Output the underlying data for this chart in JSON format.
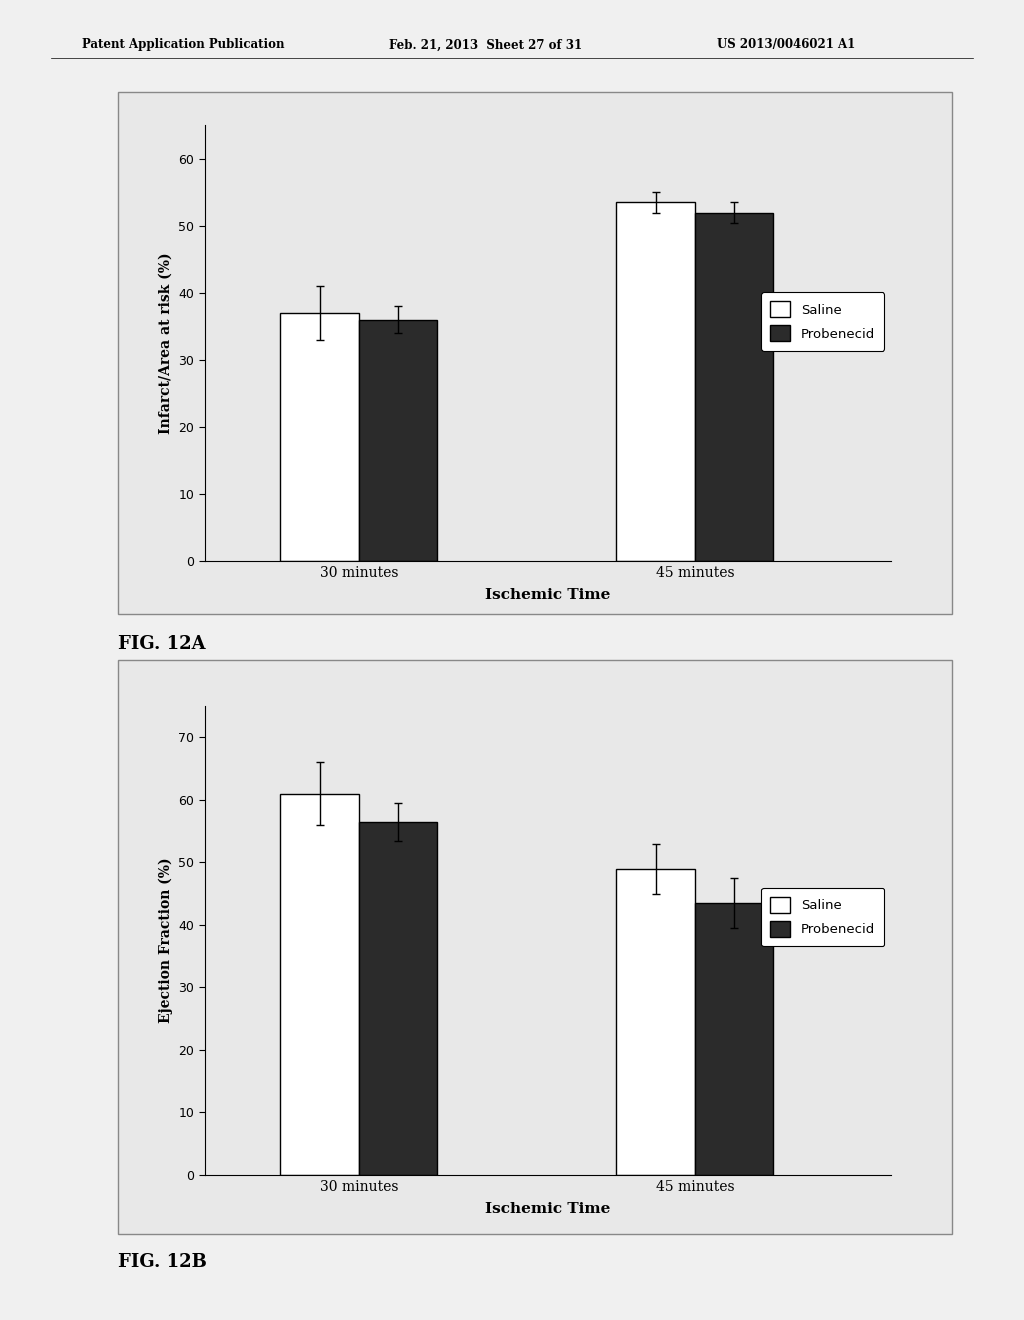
{
  "fig12a": {
    "ylabel": "Infarct/Area at risk (%)",
    "xlabel": "Ischemic Time",
    "categories": [
      "30 minutes",
      "45 minutes"
    ],
    "saline_values": [
      37.0,
      53.5
    ],
    "probenecid_values": [
      36.0,
      52.0
    ],
    "saline_errors": [
      4.0,
      1.5
    ],
    "probenecid_errors": [
      2.0,
      1.5
    ],
    "ylim": [
      0,
      65
    ],
    "yticks": [
      0,
      10,
      20,
      30,
      40,
      50,
      60
    ],
    "saline_color": "#ffffff",
    "probenecid_color": "#2b2b2b",
    "bar_edge_color": "#000000",
    "bar_width": 0.28,
    "fig_label": "FIG. 12A"
  },
  "fig12b": {
    "ylabel": "Ejection Fraction (%)",
    "xlabel": "Ischemic Time",
    "categories": [
      "30 minutes",
      "45 minutes"
    ],
    "saline_values": [
      61.0,
      49.0
    ],
    "probenecid_values": [
      56.5,
      43.5
    ],
    "saline_errors": [
      5.0,
      4.0
    ],
    "probenecid_errors": [
      3.0,
      4.0
    ],
    "ylim": [
      0,
      75
    ],
    "yticks": [
      0,
      10,
      20,
      30,
      40,
      50,
      60,
      70
    ],
    "saline_color": "#ffffff",
    "probenecid_color": "#2b2b2b",
    "bar_edge_color": "#000000",
    "bar_width": 0.28,
    "fig_label": "FIG. 12B"
  },
  "page_bg": "#f0f0f0",
  "panel_bg": "#e8e8e8",
  "panel_border": "#888888",
  "fig_width": 10.24,
  "fig_height": 13.2,
  "header_left": "Patent Application Publication",
  "header_mid": "Feb. 21, 2013  Sheet 27 of 31",
  "header_right": "US 2013/0046021 A1"
}
